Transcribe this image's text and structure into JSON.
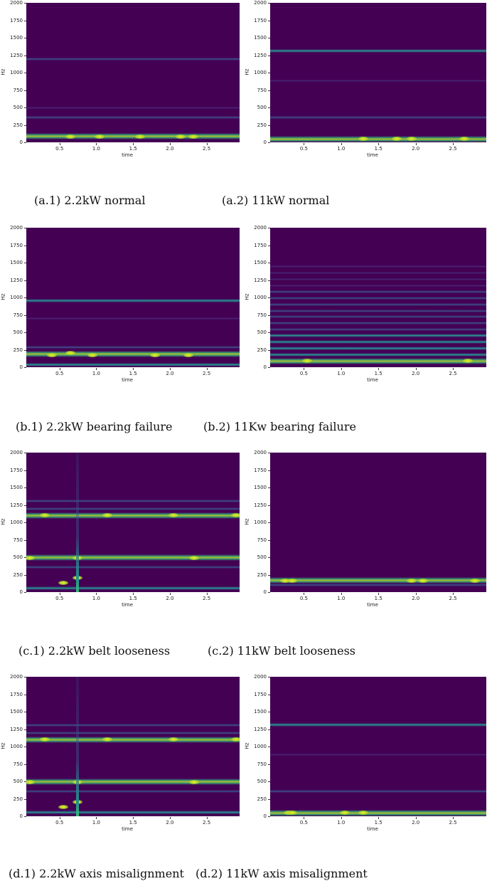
{
  "figure": {
    "panels": [
      {
        "id": "a1",
        "caption": "(a.1) 2.2kW normal"
      },
      {
        "id": "a2",
        "caption": "(a.2) 11kW normal"
      },
      {
        "id": "b1",
        "caption": "(b.1) 2.2kW bearing failure"
      },
      {
        "id": "b2",
        "caption": "(b.2) 11Kw bearing failure"
      },
      {
        "id": "c1",
        "caption": "(c.1) 2.2kW belt looseness"
      },
      {
        "id": "c2",
        "caption": "(c.2) 11kW belt looseness"
      },
      {
        "id": "d1",
        "caption": "(d.1) 2.2kW axis misalignment"
      },
      {
        "id": "d2",
        "caption": "(d.2) 11kW axis misalignment"
      }
    ],
    "axes": {
      "xlabel": "time",
      "ylabel": "Hz",
      "xticks": [
        "0.5",
        "1.0",
        "1.5",
        "2.0",
        "2.5"
      ],
      "yticks": [
        "2000",
        "1750",
        "1500",
        "1250",
        "1000",
        "750",
        "500",
        "250",
        "0"
      ]
    }
  },
  "chart_data": [
    {
      "type": "heatmap",
      "title": "(a.1) 2.2kW normal",
      "xlabel": "time",
      "ylabel": "Hz",
      "xlim": [
        0,
        2.9
      ],
      "ylim": [
        0,
        2000
      ],
      "colormap": "viridis",
      "bands_hz": [
        {
          "f": 85,
          "intensity": "high",
          "notes": "yellow hotspots near t=0.6, 2.1, 2.3"
        },
        {
          "f": 1190,
          "intensity": "low"
        },
        {
          "f": 360,
          "intensity": "low"
        },
        {
          "f": 490,
          "intensity": "very low"
        }
      ]
    },
    {
      "type": "heatmap",
      "title": "(a.2) 11kW normal",
      "xlabel": "time",
      "ylabel": "Hz",
      "xlim": [
        0,
        2.9
      ],
      "ylim": [
        0,
        2000
      ],
      "colormap": "viridis",
      "bands_hz": [
        {
          "f": 50,
          "intensity": "high"
        },
        {
          "f": 1310,
          "intensity": "medium"
        },
        {
          "f": 360,
          "intensity": "low"
        },
        {
          "f": 880,
          "intensity": "very low"
        }
      ]
    },
    {
      "type": "heatmap",
      "title": "(b.1) 2.2kW bearing failure",
      "xlabel": "time",
      "ylabel": "Hz",
      "xlim": [
        0,
        2.9
      ],
      "ylim": [
        0,
        2000
      ],
      "colormap": "viridis",
      "bands_hz": [
        {
          "f": 950,
          "intensity": "medium"
        },
        {
          "f": 190,
          "intensity": "high",
          "notes": "intermittent, hotspots near t=0.6, 2.2"
        },
        {
          "f": 35,
          "intensity": "medium"
        },
        {
          "f": 290,
          "intensity": "low"
        },
        {
          "f": 700,
          "intensity": "very low"
        }
      ]
    },
    {
      "type": "heatmap",
      "title": "(b.2) 11Kw bearing failure",
      "xlabel": "time",
      "ylabel": "Hz",
      "xlim": [
        0,
        2.9
      ],
      "ylim": [
        0,
        2000
      ],
      "colormap": "viridis",
      "bands_hz": [
        {
          "f": 90,
          "intensity": "high"
        },
        {
          "f": 180,
          "intensity": "medium"
        },
        {
          "f": 270,
          "intensity": "medium"
        },
        {
          "f": 360,
          "intensity": "medium"
        },
        {
          "f": 450,
          "intensity": "medium"
        },
        {
          "f": 540,
          "intensity": "low"
        },
        {
          "f": 630,
          "intensity": "low"
        },
        {
          "f": 720,
          "intensity": "low"
        },
        {
          "f": 810,
          "intensity": "low"
        },
        {
          "f": 900,
          "intensity": "low"
        },
        {
          "f": 990,
          "intensity": "low"
        },
        {
          "f": 1080,
          "intensity": "low"
        },
        {
          "f": 1170,
          "intensity": "very low"
        },
        {
          "f": 1260,
          "intensity": "very low"
        },
        {
          "f": 1350,
          "intensity": "very low"
        },
        {
          "f": 1440,
          "intensity": "very low"
        }
      ]
    },
    {
      "type": "heatmap",
      "title": "(c.1) 2.2kW belt looseness",
      "xlabel": "time",
      "ylabel": "Hz",
      "xlim": [
        0,
        2.9
      ],
      "ylim": [
        0,
        2000
      ],
      "colormap": "viridis",
      "bands_hz": [
        {
          "f": 1100,
          "intensity": "high"
        },
        {
          "f": 490,
          "intensity": "high"
        },
        {
          "f": 360,
          "intensity": "low"
        },
        {
          "f": 1190,
          "intensity": "low"
        },
        {
          "f": 1310,
          "intensity": "low"
        },
        {
          "f": 60,
          "intensity": "medium"
        }
      ],
      "vertical_streak_time": 0.7
    },
    {
      "type": "heatmap",
      "title": "(c.2) 11kW belt looseness",
      "xlabel": "time",
      "ylabel": "Hz",
      "xlim": [
        0,
        2.9
      ],
      "ylim": [
        0,
        2000
      ],
      "colormap": "viridis",
      "bands_hz": [
        {
          "f": 165,
          "intensity": "high",
          "notes": "hotspots near t=0.2, 0.3, 2.7"
        },
        {
          "f": 100,
          "intensity": "low"
        }
      ]
    },
    {
      "type": "heatmap",
      "title": "(d.1) 2.2kW axis misalignment",
      "xlabel": "time",
      "ylabel": "Hz",
      "xlim": [
        0,
        2.9
      ],
      "ylim": [
        0,
        2000
      ],
      "colormap": "viridis",
      "bands_hz": [
        {
          "f": 1100,
          "intensity": "high"
        },
        {
          "f": 490,
          "intensity": "high"
        },
        {
          "f": 360,
          "intensity": "low"
        },
        {
          "f": 1190,
          "intensity": "low"
        },
        {
          "f": 1310,
          "intensity": "low"
        },
        {
          "f": 60,
          "intensity": "medium"
        }
      ],
      "vertical_streak_time": 0.7
    },
    {
      "type": "heatmap",
      "title": "(d.2) 11kW axis misalignment",
      "xlabel": "time",
      "ylabel": "Hz",
      "xlim": [
        0,
        2.9
      ],
      "ylim": [
        0,
        2000
      ],
      "colormap": "viridis",
      "bands_hz": [
        {
          "f": 45,
          "intensity": "high",
          "notes": "yellow near t=0.3, 1.0"
        },
        {
          "f": 1310,
          "intensity": "medium"
        },
        {
          "f": 360,
          "intensity": "low"
        },
        {
          "f": 880,
          "intensity": "very low"
        }
      ]
    }
  ]
}
